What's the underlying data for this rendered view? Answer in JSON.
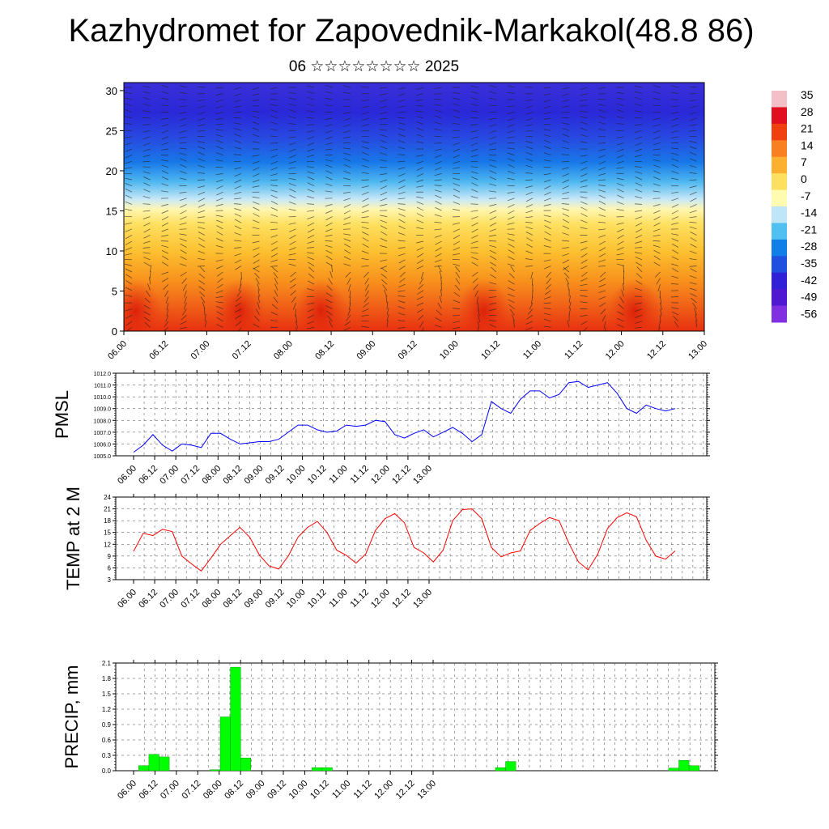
{
  "title": "Kazhydromet for Zapovednik-Markakol(48.8 86)",
  "subtitle": "06 ☆☆☆☆☆☆☆☆ 2025",
  "time_labels": [
    "06.00",
    "06.12",
    "07.00",
    "07.12",
    "08.00",
    "08.12",
    "09.00",
    "09.12",
    "10.00",
    "10.12",
    "11.00",
    "11.12",
    "12.00",
    "12.12",
    "13.00"
  ],
  "colors": {
    "pmsl": "#0000ff",
    "temp": "#ff0000",
    "precip": "#00ff00"
  },
  "colorbar": {
    "labels": [
      "35",
      "28",
      "21",
      "14",
      "7",
      "0",
      "-7",
      "-14",
      "-21",
      "-28",
      "-35",
      "-42",
      "-49",
      "-56"
    ],
    "stops": [
      "#f4c0c8",
      "#e01020",
      "#f04010",
      "#f88020",
      "#fbb030",
      "#fde060",
      "#fffbb0",
      "#bfe6f7",
      "#50c0f0",
      "#1080e8",
      "#2050e0",
      "#3020d8",
      "#5018d0",
      "#8030e0"
    ]
  },
  "chart_data": [
    {
      "type": "heatmap",
      "title": "",
      "ylabel": "",
      "yticks": [
        0,
        5,
        10,
        15,
        20,
        25,
        30
      ],
      "ylim": [
        0,
        31
      ],
      "x_range_hours": [
        0,
        168
      ],
      "x_tick_labels": [
        "06.00",
        "06.12",
        "07.00",
        "07.12",
        "08.00",
        "08.12",
        "09.00",
        "09.12",
        "10.00",
        "10.12",
        "11.00",
        "11.12",
        "12.00",
        "12.12",
        "13.00"
      ],
      "value_range": [
        -56,
        35
      ],
      "overlay": "wind vectors"
    },
    {
      "type": "line",
      "ylabel": "PMSL",
      "ylim": [
        1005.0,
        1012.0
      ],
      "yticks": [
        "1005.0",
        "1006.0",
        "1007.0",
        "1008.0",
        "1009.0",
        "1010.0",
        "1011.0",
        "1012.0"
      ],
      "x_tick_labels": [
        "06.00",
        "06.12",
        "07.00",
        "07.12",
        "08.00",
        "08.12",
        "09.00",
        "09.12",
        "10.00",
        "10.12",
        "11.00",
        "11.12",
        "12.00",
        "12.12",
        "13.00"
      ],
      "x_step_hours": 3,
      "series": [
        {
          "values": [
            1005.3,
            1005.9,
            1006.8,
            1005.9,
            1005.4,
            1006.0,
            1005.9,
            1005.7,
            1006.9,
            1006.9,
            1006.4,
            1006.0,
            1006.1,
            1006.2,
            1006.2,
            1006.4,
            1007.0,
            1007.6,
            1007.6,
            1007.2,
            1007.0,
            1007.1,
            1007.6,
            1007.5,
            1007.6,
            1008.0,
            1007.9,
            1006.8,
            1006.5,
            1006.9,
            1007.2,
            1006.6,
            1007.0,
            1007.4,
            1006.9,
            1006.2,
            1006.8,
            1009.6,
            1009.0,
            1008.6,
            1009.8,
            1010.5,
            1010.5,
            1009.9,
            1010.2,
            1011.2,
            1011.3,
            1010.8,
            1011.0,
            1011.2,
            1010.3,
            1009.0,
            1008.6,
            1009.3,
            1009.0,
            1008.8,
            1009.0
          ]
        }
      ]
    },
    {
      "type": "line",
      "ylabel": "TEMP at 2 M",
      "ylim": [
        3,
        24
      ],
      "yticks": [
        "3",
        "6",
        "9",
        "12",
        "15",
        "18",
        "21",
        "24"
      ],
      "x_tick_labels": [
        "06.00",
        "06.12",
        "07.00",
        "07.12",
        "08.00",
        "08.12",
        "09.00",
        "09.12",
        "10.00",
        "10.12",
        "11.00",
        "11.12",
        "12.00",
        "12.12",
        "13.00"
      ],
      "x_step_hours": 3,
      "series": [
        {
          "values": [
            10.2,
            14.8,
            14.2,
            15.8,
            15.2,
            9.0,
            7.0,
            5.2,
            8.5,
            12.0,
            14.2,
            16.3,
            13.8,
            9.3,
            6.5,
            5.7,
            9.0,
            13.8,
            16.3,
            17.8,
            15.0,
            10.5,
            9.2,
            7.2,
            9.5,
            15.5,
            18.5,
            19.8,
            17.5,
            11.2,
            9.8,
            7.5,
            10.5,
            18.0,
            20.8,
            21.0,
            18.5,
            11.2,
            8.8,
            9.8,
            10.3,
            15.5,
            17.3,
            18.8,
            18.0,
            12.3,
            7.5,
            5.5,
            9.5,
            16.0,
            18.8,
            20.0,
            19.0,
            13.0,
            9.0,
            8.2,
            10.3
          ]
        }
      ]
    },
    {
      "type": "bar",
      "ylabel": "PRECIP, mm",
      "ylim": [
        0,
        2.1
      ],
      "yticks": [
        "0.0",
        "0.3",
        "0.6",
        "0.9",
        "1.2",
        "1.5",
        "1.8",
        "2.1"
      ],
      "x_tick_labels": [
        "06.00",
        "06.12",
        "07.00",
        "07.12",
        "08.00",
        "08.12",
        "09.00",
        "09.12",
        "10.00",
        "10.12",
        "11.00",
        "11.12",
        "12.00",
        "12.12",
        "13.00"
      ],
      "bar_width_hours": 3,
      "bars": [
        {
          "t": 3,
          "v": 0.1
        },
        {
          "t": 6,
          "v": 0.32
        },
        {
          "t": 9,
          "v": 0.27
        },
        {
          "t": 24,
          "v": 0.02
        },
        {
          "t": 27,
          "v": 1.05
        },
        {
          "t": 30,
          "v": 2.02
        },
        {
          "t": 33,
          "v": 0.25
        },
        {
          "t": 54,
          "v": 0.06
        },
        {
          "t": 57,
          "v": 0.06
        },
        {
          "t": 108,
          "v": 0.06
        },
        {
          "t": 111,
          "v": 0.18
        },
        {
          "t": 159,
          "v": 0.05
        },
        {
          "t": 162,
          "v": 0.2
        },
        {
          "t": 165,
          "v": 0.1
        }
      ]
    }
  ]
}
